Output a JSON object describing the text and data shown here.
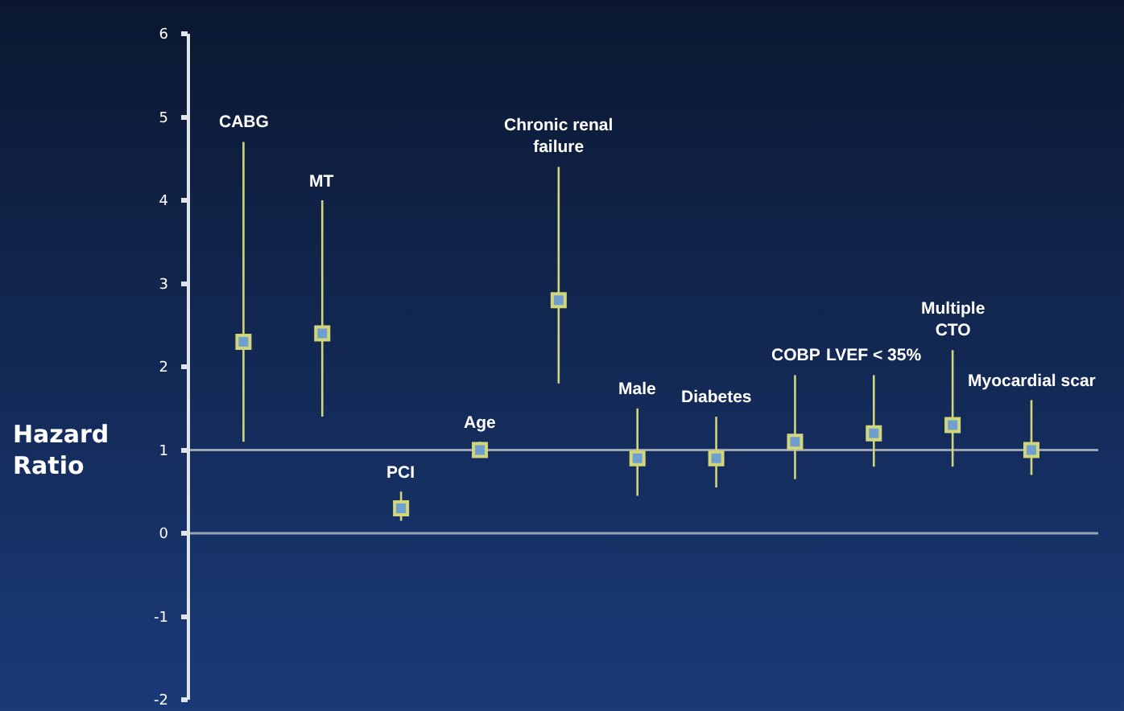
{
  "chart_data": {
    "type": "scatter",
    "ylabel": "Hazard\nRatio",
    "categories": [
      "CABG",
      "MT",
      "PCI",
      "Age",
      "Chronic renal\nfailure",
      "Male",
      "Diabetes",
      "COBP",
      "LVEF < 35%",
      "Multiple\nCTO",
      "Myocardial scar"
    ],
    "series": [
      {
        "color": "#d2d67a",
        "values": [
          2.3,
          2.4,
          0.3,
          1.0,
          2.8,
          0.9,
          0.9,
          1.1,
          1.2,
          1.3,
          1.0
        ],
        "errors": [
          [
            1.1,
            4.7
          ],
          [
            1.4,
            4.0
          ],
          [
            0.15,
            0.5
          ],
          [
            0.95,
            1.1
          ],
          [
            1.8,
            4.4
          ],
          [
            0.45,
            1.5
          ],
          [
            0.55,
            1.4
          ],
          [
            0.65,
            1.9
          ],
          [
            0.8,
            1.9
          ],
          [
            0.8,
            2.2
          ],
          [
            0.7,
            1.6
          ]
        ]
      }
    ],
    "ylim": [
      -2,
      6
    ],
    "yticks": [
      -2,
      -1,
      0,
      1,
      2,
      3,
      4,
      5,
      6
    ],
    "ref_lines": [
      {
        "axis": "y",
        "value": 1,
        "color": "#9aa4b4"
      },
      {
        "axis": "y",
        "value": 0,
        "color": "#9aa4b4"
      }
    ],
    "grid": false,
    "marker": "square",
    "tick_labels": "y"
  }
}
